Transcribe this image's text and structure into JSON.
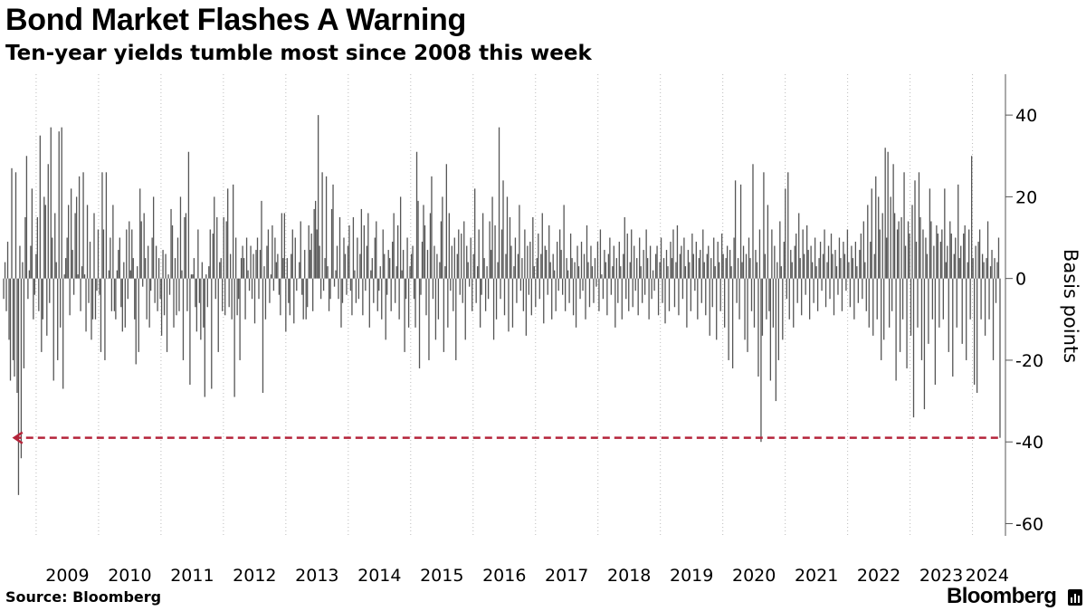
{
  "header": {
    "title": "Bond Market Flashes A Warning",
    "subtitle": "Ten-year yields tumble most since 2008 this week"
  },
  "footer": {
    "source": "Source: Bloomberg",
    "brand": "Bloomberg"
  },
  "colors": {
    "bars": "#555555",
    "grid": "#bbbbbb",
    "reference_line": "#b5243a",
    "axis": "#555555"
  },
  "chart_data": {
    "type": "bar",
    "ylabel": "Basis points",
    "ylim": [
      -63,
      50
    ],
    "yticks": [
      40,
      20,
      0,
      -20,
      -40,
      -60
    ],
    "ytick_labels": [
      "40",
      "20",
      "0",
      "-20",
      "-40",
      "-60"
    ],
    "xlim": [
      2008.45,
      2024.47
    ],
    "x_tick_labels": [
      "2009",
      "2010",
      "2011",
      "2012",
      "2013",
      "2014",
      "2015",
      "2016",
      "2017",
      "2018",
      "2019",
      "2020",
      "2021",
      "2022",
      "2023",
      "2024"
    ],
    "grid": "vertical dotted",
    "reference_line": {
      "y": -39,
      "style": "dashed",
      "arrow": "left",
      "x_start": 2008.65,
      "x_end": 2024.44
    },
    "weekly_change_bp": [
      -5,
      4,
      -8,
      9,
      -15,
      -25,
      27,
      -20,
      -24,
      26,
      -28,
      -53,
      8,
      -44,
      4,
      -22,
      15,
      30,
      -5,
      2,
      8,
      22,
      -10,
      -4,
      6,
      15,
      -8,
      35,
      -18,
      -10,
      20,
      18,
      -14,
      28,
      -6,
      37,
      10,
      -25,
      16,
      4,
      -20,
      36,
      -12,
      37,
      -27,
      1,
      5,
      10,
      18,
      -9,
      22,
      7,
      -4,
      16,
      20,
      1,
      25,
      -8,
      3,
      26,
      1,
      -13,
      18,
      -6,
      9,
      -15,
      -10,
      16,
      -10,
      -3,
      12,
      -4,
      -18,
      26,
      12,
      -20,
      26,
      0,
      2,
      10,
      -8,
      18,
      -8,
      -10,
      2,
      7,
      10,
      -7,
      -13,
      4,
      -12,
      12,
      -5,
      14,
      2,
      12,
      5,
      -10,
      -21,
      3,
      -18,
      22,
      14,
      -2,
      16,
      5,
      -10,
      8,
      -12,
      -3,
      10,
      20,
      -6,
      8,
      -8,
      5,
      -5,
      -14,
      7,
      -9,
      6,
      -18,
      1,
      -4,
      17,
      13,
      -12,
      5,
      -9,
      10,
      -8,
      20,
      2,
      -20,
      15,
      16,
      -8,
      31,
      -26,
      1,
      1,
      5,
      -7,
      -13,
      12,
      -6,
      -15,
      4,
      -12,
      -29,
      1,
      -7,
      3,
      12,
      -27,
      11,
      20,
      -5,
      15,
      -18,
      4,
      5,
      -8,
      15,
      -9,
      14,
      22,
      -7,
      6,
      -10,
      23,
      -29,
      10,
      -9,
      -5,
      -20,
      5,
      8,
      5,
      -10,
      10,
      2,
      -3,
      8,
      -5,
      6,
      -11,
      7,
      10,
      -5,
      7,
      19,
      -28,
      3,
      -10,
      8,
      12,
      -6,
      1,
      13,
      -3,
      10,
      4,
      6,
      -4,
      -9,
      16,
      5,
      16,
      -13,
      5,
      -6,
      -9,
      6,
      12,
      -11,
      10,
      -3,
      0,
      4,
      14,
      -4,
      -10,
      7,
      -10,
      -7,
      13,
      7,
      11,
      -8,
      17,
      19,
      12,
      40,
      8,
      -5,
      26,
      -3,
      5,
      25,
      3,
      -8,
      -5,
      17,
      23,
      -2,
      2,
      8,
      -5,
      15,
      -12,
      -6,
      10,
      6,
      -4,
      8,
      13,
      -3,
      -9,
      15,
      2,
      -6,
      10,
      -5,
      6,
      17,
      -9,
      13,
      -3,
      8,
      16,
      -12,
      2,
      5,
      -6,
      10,
      14,
      -8,
      -3,
      3,
      -10,
      12,
      6,
      -15,
      -4,
      7,
      5,
      -8,
      9,
      16,
      -6,
      3,
      13,
      -10,
      20,
      2,
      7,
      -18,
      -5,
      10,
      -12,
      3,
      6,
      8,
      -5,
      -12,
      31,
      19,
      -22,
      -4,
      9,
      18,
      13,
      -9,
      7,
      -20,
      16,
      25,
      -5,
      8,
      -15,
      6,
      -10,
      4,
      14,
      20,
      -18,
      3,
      28,
      -12,
      16,
      -3,
      8,
      -8,
      10,
      -20,
      6,
      12,
      -4,
      11,
      -6,
      14,
      -15,
      8,
      4,
      -2,
      10,
      -8,
      6,
      22,
      -6,
      3,
      12,
      -12,
      -4,
      16,
      5,
      -8,
      3,
      -5,
      14,
      7,
      20,
      -15,
      13,
      -10,
      4,
      37,
      -5,
      12,
      24,
      -9,
      6,
      20,
      -13,
      15,
      8,
      -12,
      3,
      10,
      -6,
      6,
      18,
      -3,
      5,
      -8,
      12,
      -14,
      8,
      -4,
      9,
      -9,
      15,
      3,
      -7,
      5,
      11,
      -5,
      6,
      16,
      -11,
      8,
      7,
      -4,
      13,
      4,
      -10,
      6,
      2,
      -8,
      9,
      -3,
      12,
      7,
      -4,
      18,
      -8,
      5,
      2,
      -6,
      11,
      5,
      -9,
      4,
      -12,
      8,
      3,
      -5,
      9,
      -3,
      6,
      -10,
      13,
      4,
      -7,
      8,
      3,
      -6,
      5,
      -2,
      9,
      -8,
      12,
      1,
      -5,
      7,
      4,
      -9,
      6,
      10,
      -4,
      3,
      8,
      -12,
      5,
      -6,
      9,
      3,
      -10,
      6,
      15,
      -5,
      11,
      -8,
      4,
      12,
      -7,
      8,
      -3,
      5,
      -9,
      10,
      3,
      -6,
      7,
      -4,
      12,
      5,
      -10,
      8,
      -5,
      2,
      -3,
      6,
      8,
      -9,
      4,
      10,
      -6,
      5,
      -11,
      7,
      3,
      -8,
      9,
      5,
      12,
      -7,
      4,
      13,
      -9,
      6,
      8,
      -5,
      10,
      3,
      -12,
      7,
      4,
      -8,
      11,
      6,
      -3,
      9,
      -10,
      5,
      7,
      -6,
      12,
      4,
      -9,
      6,
      8,
      -14,
      5,
      -7,
      10,
      3,
      -15,
      9,
      4,
      -8,
      11,
      6,
      -12,
      5,
      8,
      -20,
      7,
      3,
      -22,
      10,
      24,
      -6,
      5,
      -10,
      23,
      4,
      8,
      -15,
      6,
      -18,
      10,
      5,
      -8,
      28,
      -12,
      7,
      4,
      -24,
      12,
      -40,
      -14,
      26,
      6,
      -10,
      18,
      -8,
      -25,
      12,
      -12,
      8,
      -30,
      4,
      -20,
      14,
      3,
      -15,
      9,
      22,
      -5,
      26,
      -10,
      7,
      4,
      -12,
      8,
      11,
      -6,
      16,
      5,
      -9,
      12,
      6,
      -4,
      13,
      7,
      -10,
      8,
      4,
      -6,
      10,
      3,
      -8,
      5,
      9,
      -3,
      6,
      12,
      -7,
      4,
      8,
      -5,
      11,
      6,
      -9,
      7,
      3,
      -4,
      10,
      5,
      -8,
      9,
      6,
      -3,
      12,
      4,
      -7,
      8,
      5,
      -10,
      9,
      3,
      -6,
      7,
      11,
      -5,
      14,
      4,
      -8,
      18,
      -12,
      9,
      22,
      -14,
      6,
      25,
      -10,
      20,
      12,
      -20,
      16,
      -15,
      32,
      10,
      31,
      -12,
      20,
      -8,
      28,
      16,
      -25,
      12,
      14,
      -18,
      15,
      -10,
      26,
      8,
      -22,
      14,
      11,
      -14,
      18,
      -34,
      24,
      9,
      -12,
      26,
      15,
      -20,
      12,
      -32,
      10,
      6,
      -16,
      22,
      14,
      -10,
      8,
      -26,
      13,
      11,
      -12,
      9,
      12,
      -10,
      22,
      4,
      8,
      -18,
      14,
      11,
      -24,
      6,
      10,
      -12,
      23,
      5,
      8,
      -16,
      11,
      13,
      -20,
      4,
      12,
      -10,
      30,
      5,
      -26,
      8,
      -28,
      9,
      12,
      -10,
      6,
      4,
      -14,
      5,
      14,
      -10,
      3,
      7,
      -20,
      5,
      -6,
      4,
      10,
      -39
    ]
  }
}
